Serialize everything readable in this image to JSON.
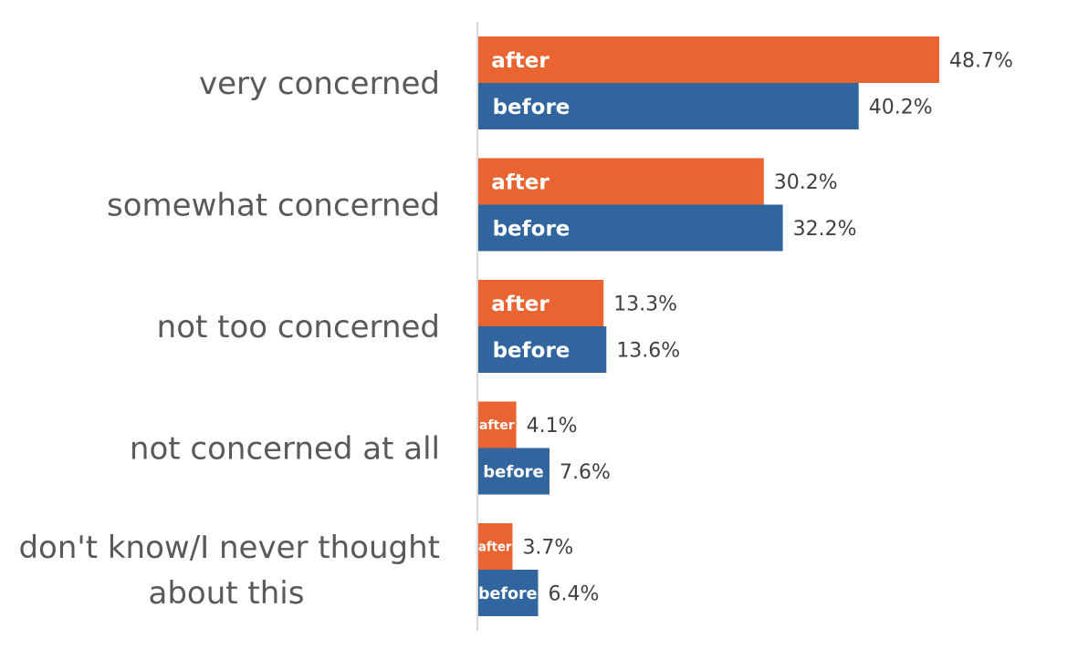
{
  "chart_data": {
    "type": "bar",
    "orientation": "horizontal",
    "categories": [
      "very concerned",
      "somewhat concerned",
      "not too concerned",
      "not concerned at all",
      "don't know/I never thought about this"
    ],
    "series": [
      {
        "name": "after",
        "color": "#E96430",
        "values": [
          48.7,
          30.2,
          13.3,
          4.1,
          3.7
        ]
      },
      {
        "name": "before",
        "color": "#31659E",
        "values": [
          40.2,
          32.2,
          13.6,
          7.6,
          6.4
        ]
      }
    ],
    "value_labels": {
      "after": [
        "48.7%",
        "30.2%",
        "13.3%",
        "4.1%",
        "3.7%"
      ],
      "before": [
        "40.2%",
        "32.2%",
        "13.6%",
        "7.6%",
        "6.4%"
      ]
    },
    "xlim": [
      0,
      55
    ],
    "legend": "none",
    "grid": false,
    "axis_color": "#D9D9D9"
  }
}
